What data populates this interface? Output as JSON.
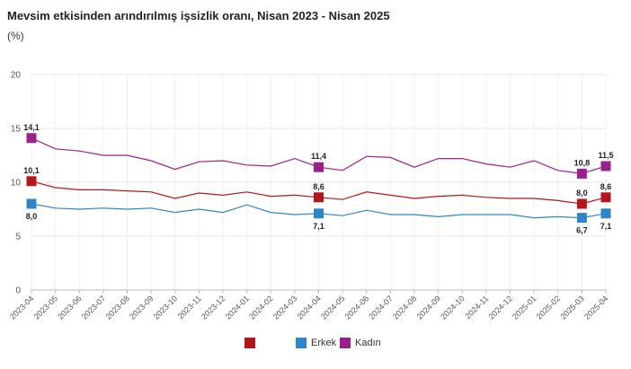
{
  "chart_data": {
    "type": "line",
    "title": "Mevsim etkisinden arındırılmış işsizlik oranı, Nisan 2023 - Nisan 2025",
    "subtitle": "(%)",
    "ylim": [
      0,
      20
    ],
    "yticks": [
      0,
      5,
      10,
      15,
      20
    ],
    "grid": true,
    "legend": "bottom",
    "categories": [
      "2023-04",
      "2023-05",
      "2023-06",
      "2023-07",
      "2023-08",
      "2023-09",
      "2023-10",
      "2023-11",
      "2023-12",
      "2024-01",
      "2024-02",
      "2024-03",
      "2024-04",
      "2024-05",
      "2024-06",
      "2024-07",
      "2024-08",
      "2024-09",
      "2024-10",
      "2024-11",
      "2024-12",
      "2025-01",
      "2025-02",
      "2025-03",
      "2025-04"
    ],
    "series": [
      {
        "name": "",
        "color": "#b5161b",
        "values": [
          10.1,
          9.5,
          9.3,
          9.3,
          9.2,
          9.1,
          8.5,
          9.0,
          8.8,
          9.1,
          8.7,
          8.8,
          8.6,
          8.4,
          9.1,
          8.8,
          8.5,
          8.7,
          8.8,
          8.6,
          8.5,
          8.5,
          8.3,
          8.0,
          8.6
        ],
        "labels": {
          "0": "10,1",
          "12": "8,6",
          "23": "8,0",
          "24": "8,6"
        }
      },
      {
        "name": "Erkek",
        "color": "#2e86c8",
        "values": [
          8.0,
          7.6,
          7.5,
          7.6,
          7.5,
          7.6,
          7.2,
          7.5,
          7.2,
          7.9,
          7.2,
          7.0,
          7.1,
          6.9,
          7.4,
          7.0,
          7.0,
          6.8,
          7.0,
          7.0,
          7.0,
          6.7,
          6.8,
          6.7,
          7.1
        ],
        "labels": {
          "0": "8,0",
          "12": "7,1",
          "23": "6,7",
          "24": "7,1"
        }
      },
      {
        "name": "Kadın",
        "color": "#9c1f8e",
        "values": [
          14.1,
          13.1,
          12.9,
          12.5,
          12.5,
          12.0,
          11.2,
          11.9,
          12.0,
          11.6,
          11.5,
          12.2,
          11.4,
          11.1,
          12.4,
          12.3,
          11.4,
          12.2,
          12.2,
          11.7,
          11.4,
          12.0,
          11.1,
          10.8,
          11.5
        ],
        "labels": {
          "0": "14,1",
          "12": "11,4",
          "23": "10,8",
          "24": "11,5"
        }
      }
    ]
  }
}
